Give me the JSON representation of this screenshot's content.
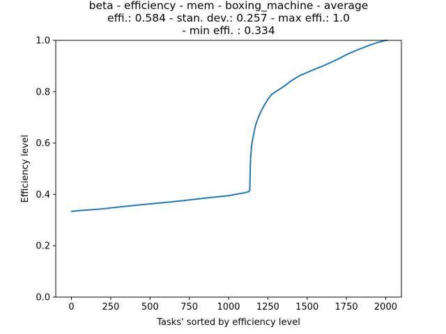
{
  "chart_data": {
    "type": "line",
    "title_lines": [
      "beta - efficiency - mem - boxing_machine - average",
      "effi.: 0.584 - stan. dev.: 0.257 - max effi.: 1.0",
      "- min effi. : 0.334"
    ],
    "xlabel": "Tasks' sorted by efficiency level",
    "ylabel": "Efficiency level",
    "xlim": [
      -100,
      2100
    ],
    "ylim": [
      0.0,
      1.0
    ],
    "xticks": [
      0,
      250,
      500,
      750,
      1000,
      1250,
      1500,
      1750,
      2000
    ],
    "xtick_labels": [
      "0",
      "250",
      "500",
      "750",
      "1000",
      "1250",
      "1500",
      "1750",
      "2000"
    ],
    "yticks": [
      0.0,
      0.2,
      0.4,
      0.6,
      0.8,
      1.0
    ],
    "ytick_labels": [
      "0.0",
      "0.2",
      "0.4",
      "0.6",
      "0.8",
      "1.0"
    ],
    "grid": false,
    "series": [
      {
        "color": "#1f77b4",
        "x": [
          0,
          50,
          100,
          200,
          300,
          400,
          500,
          600,
          700,
          800,
          900,
          1000,
          1050,
          1100,
          1125,
          1135,
          1138,
          1140,
          1145,
          1150,
          1160,
          1170,
          1180,
          1200,
          1225,
          1250,
          1275,
          1300,
          1350,
          1400,
          1450,
          1500,
          1550,
          1600,
          1650,
          1700,
          1750,
          1800,
          1850,
          1900,
          1950,
          2000,
          2010
        ],
        "y": [
          0.334,
          0.337,
          0.339,
          0.344,
          0.351,
          0.357,
          0.363,
          0.369,
          0.375,
          0.382,
          0.389,
          0.395,
          0.401,
          0.406,
          0.41,
          0.415,
          0.5,
          0.54,
          0.58,
          0.605,
          0.635,
          0.665,
          0.685,
          0.715,
          0.745,
          0.77,
          0.79,
          0.8,
          0.82,
          0.843,
          0.862,
          0.875,
          0.888,
          0.9,
          0.914,
          0.928,
          0.944,
          0.958,
          0.97,
          0.982,
          0.992,
          1.0,
          1.0
        ]
      }
    ]
  }
}
